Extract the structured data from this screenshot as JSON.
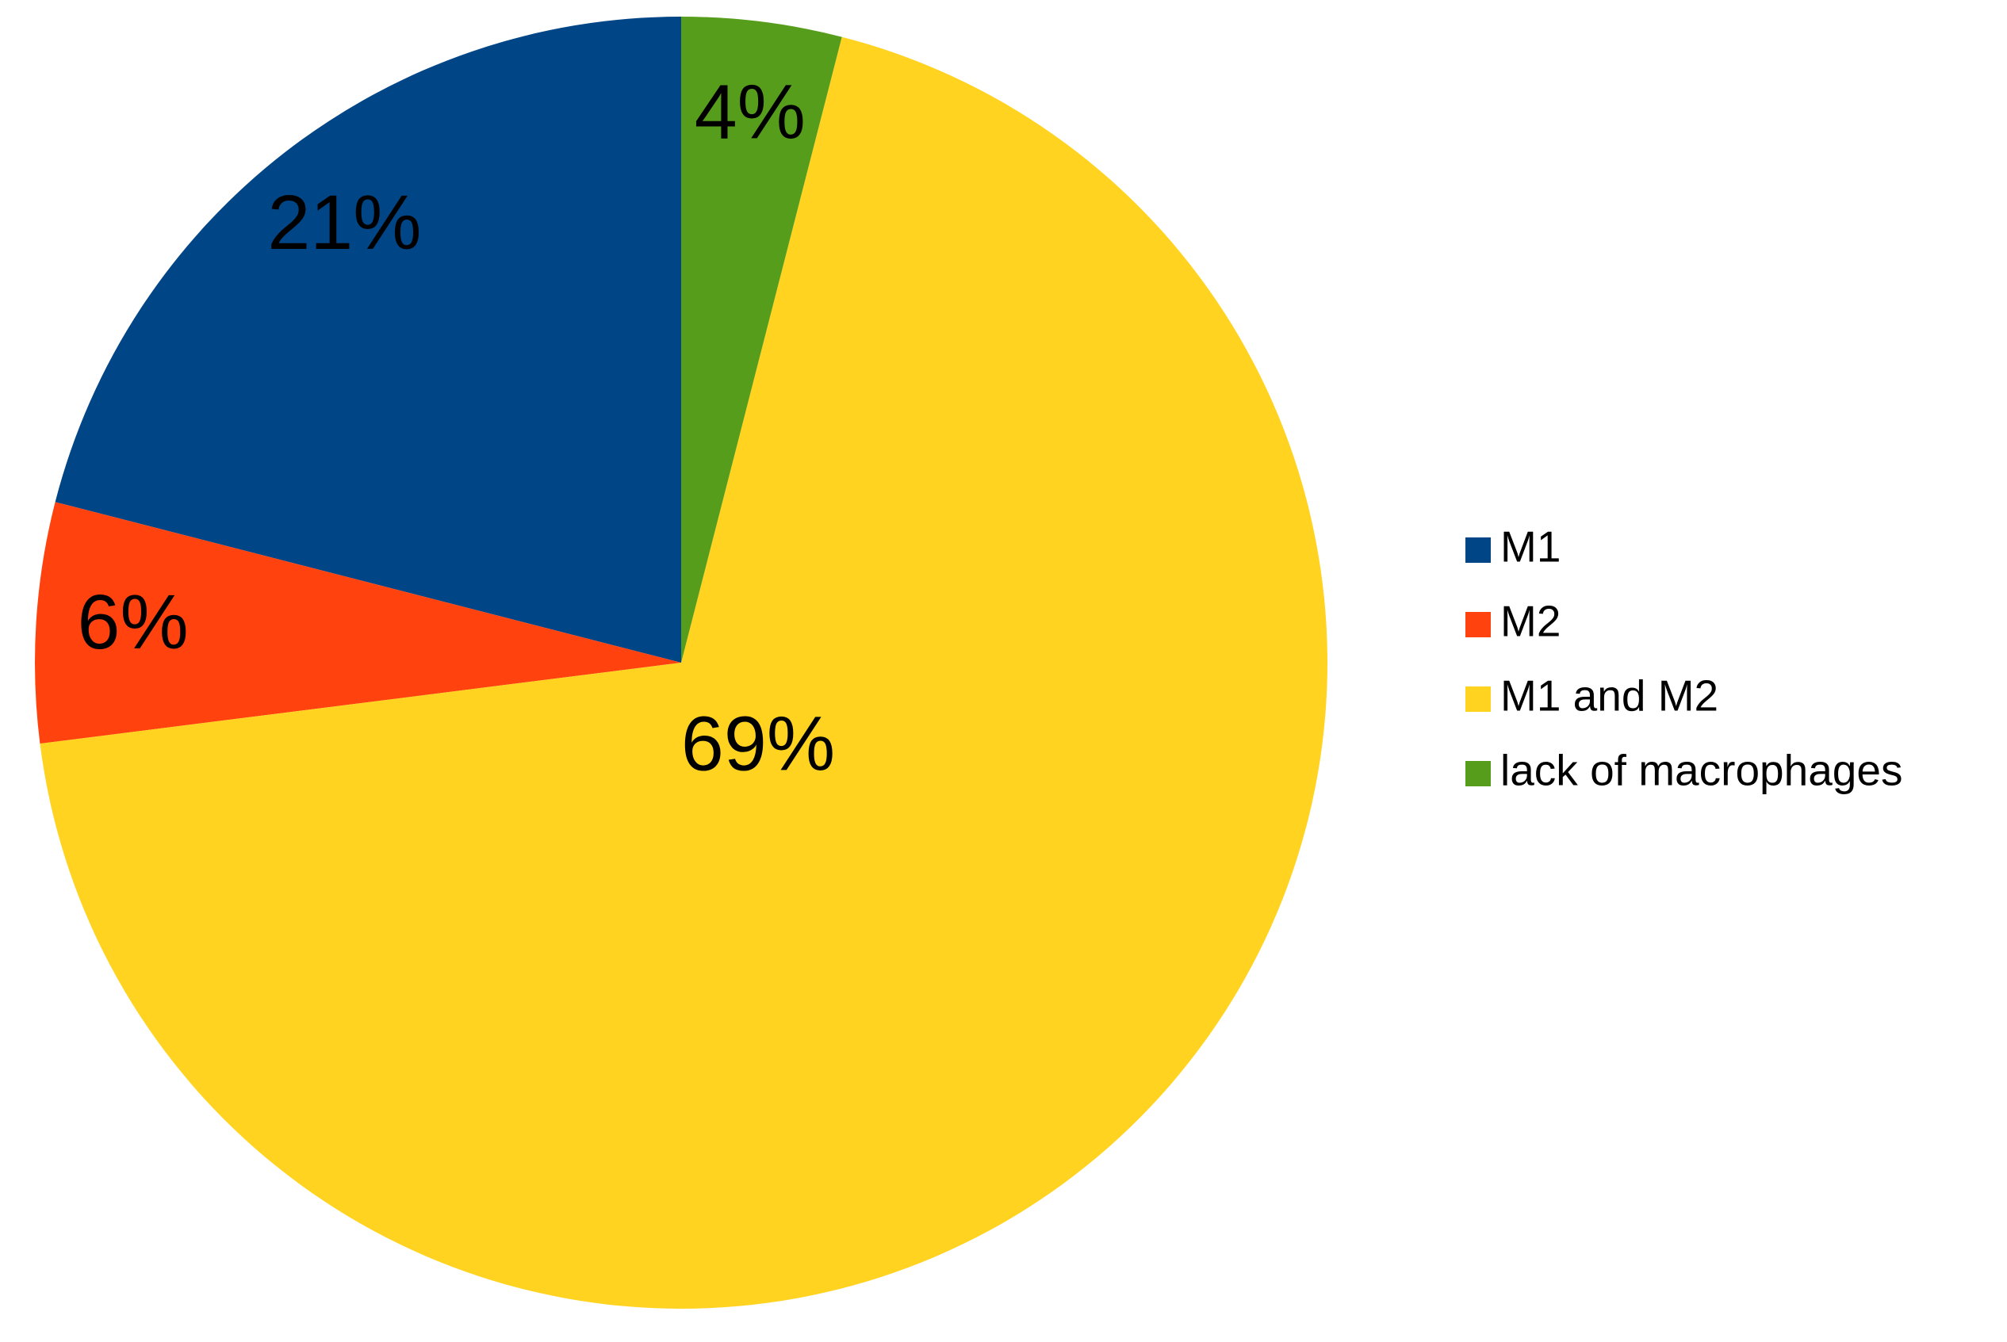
{
  "chart_data": {
    "type": "pie",
    "categories": [
      "M1",
      "M2",
      "M1 and M2",
      "lack of macrophages"
    ],
    "values": [
      21,
      6,
      69,
      4
    ],
    "value_labels": [
      "21%",
      "6%",
      "69%",
      "4%"
    ],
    "colors": [
      "#004586",
      "#ff420e",
      "#ffd320",
      "#579d1c"
    ],
    "legend": "right"
  }
}
